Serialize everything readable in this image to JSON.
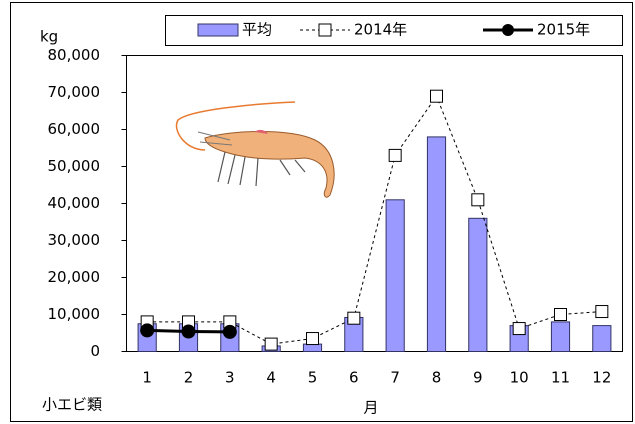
{
  "chart_data": {
    "type": "bar",
    "y_label": "kg",
    "x_label": "月",
    "annotation": "小エビ類",
    "categories": [
      "1",
      "2",
      "3",
      "4",
      "5",
      "6",
      "7",
      "8",
      "9",
      "10",
      "11",
      "12"
    ],
    "series": [
      {
        "name": "平均",
        "type": "bar",
        "color": "#9999ff",
        "values": [
          7500,
          7500,
          7500,
          1500,
          2000,
          9200,
          41000,
          58000,
          36000,
          7000,
          8000,
          7000
        ]
      },
      {
        "name": "2014年",
        "type": "line",
        "color": "#000000",
        "dashed": true,
        "marker": "square",
        "values": [
          8000,
          8000,
          8000,
          2000,
          3500,
          9000,
          53000,
          69000,
          41000,
          6200,
          10000,
          10800
        ]
      },
      {
        "name": "2015年",
        "type": "line",
        "color": "#000000",
        "dashed": false,
        "marker": "circle",
        "values": [
          5700,
          5400,
          5300,
          null,
          null,
          null,
          null,
          null,
          null,
          null,
          null,
          null
        ]
      }
    ],
    "ylim": [
      0,
      80000
    ],
    "yticks": [
      0,
      {
        "value": 10000,
        "label": "10,000"
      },
      {
        "value": 20000,
        "label": "20,000"
      },
      {
        "value": 30000,
        "label": "30,000"
      },
      {
        "value": 40000,
        "label": "40,000"
      },
      {
        "value": 50000,
        "label": "50,000"
      },
      {
        "value": 60000,
        "label": "60,000"
      },
      {
        "value": 70000,
        "label": "70,000"
      },
      {
        "value": 80000,
        "label": "80,000"
      }
    ],
    "annotation_color": "#ff0000"
  }
}
